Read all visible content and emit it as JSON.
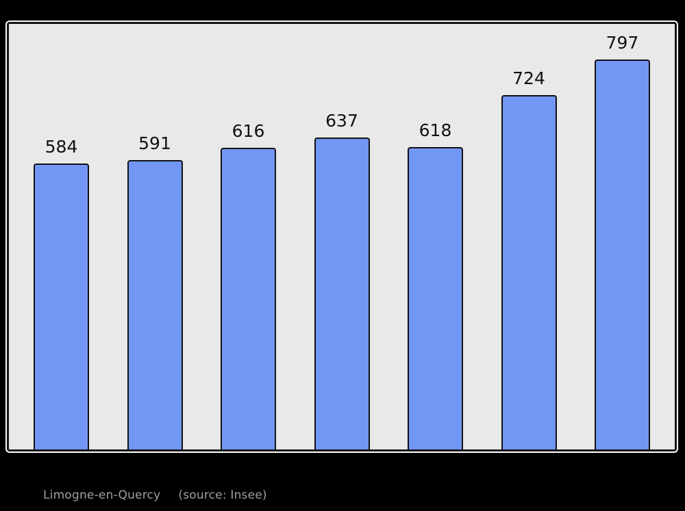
{
  "chart_data": {
    "type": "bar",
    "categories": [
      "",
      "",
      "",
      "",
      "",
      "",
      ""
    ],
    "values": [
      584,
      591,
      616,
      637,
      618,
      724,
      797
    ],
    "title": "",
    "xlabel": "",
    "ylabel": "",
    "ylim": [
      0,
      873
    ],
    "grid": false,
    "legend": "none",
    "data_labels": true,
    "bar_color": "#7296F4",
    "bar_border_color": "#111111",
    "plot_background": "#e9e9e9",
    "frame_color": "#141414",
    "frame_outline_color": "#fdfdfd",
    "page_background": "#000000",
    "label_color": "#111111"
  },
  "caption": {
    "title": "Limogne-en-Quercy",
    "source": "(source: Insee)",
    "color": "#a0a0a0"
  }
}
